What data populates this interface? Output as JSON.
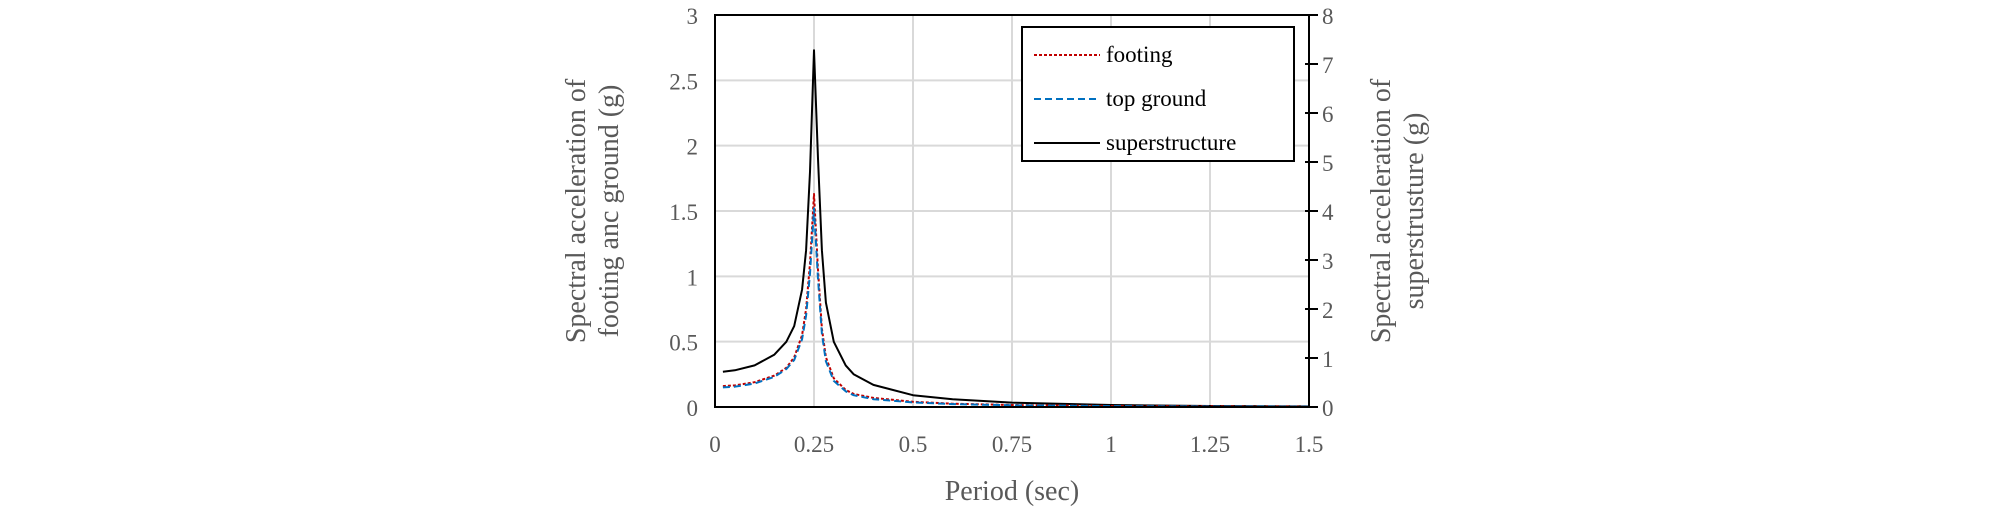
{
  "chart_data": {
    "type": "line",
    "xlabel": "Period (sec)",
    "ylabel_left": [
      "Spectral acceleration of",
      "footing anc ground (g)"
    ],
    "ylabel_right": [
      "Spectral acceleration of",
      "superstrusture (g)"
    ],
    "xlim": [
      0,
      1.5
    ],
    "ylim_left": [
      0,
      3
    ],
    "ylim_right": [
      0,
      8
    ],
    "x_ticks": [
      "0",
      "0.25",
      "0.5",
      "0.75",
      "1",
      "1.25",
      "1.5"
    ],
    "y_ticks_left": [
      "0",
      "0.5",
      "1",
      "1.5",
      "2",
      "2.5",
      "3"
    ],
    "y_ticks_right": [
      "0",
      "1",
      "2",
      "3",
      "4",
      "5",
      "6",
      "7",
      "8"
    ],
    "grid": true,
    "legend_position": "top-right",
    "x": [
      0.02,
      0.05,
      0.1,
      0.15,
      0.18,
      0.2,
      0.22,
      0.23,
      0.24,
      0.25,
      0.26,
      0.27,
      0.28,
      0.3,
      0.33,
      0.35,
      0.4,
      0.5,
      0.6,
      0.75,
      1,
      1.25,
      1.5
    ],
    "series": [
      {
        "name": "footing",
        "axis": "left",
        "color": "#c00000",
        "dash": "dotted",
        "values": [
          0.16,
          0.165,
          0.19,
          0.24,
          0.3,
          0.38,
          0.55,
          0.75,
          1.1,
          1.63,
          1.05,
          0.6,
          0.38,
          0.22,
          0.13,
          0.1,
          0.07,
          0.04,
          0.025,
          0.015,
          0.008,
          0.005,
          0.003
        ]
      },
      {
        "name": "top ground",
        "axis": "left",
        "color": "#0070c0",
        "dash": "dashed",
        "values": [
          0.15,
          0.155,
          0.18,
          0.23,
          0.29,
          0.36,
          0.52,
          0.7,
          1.02,
          1.52,
          0.98,
          0.56,
          0.35,
          0.2,
          0.12,
          0.09,
          0.06,
          0.035,
          0.022,
          0.013,
          0.007,
          0.004,
          0.003
        ]
      },
      {
        "name": "superstructure",
        "axis": "right",
        "color": "#000000",
        "dash": "solid",
        "values": [
          0.72,
          0.75,
          0.85,
          1.07,
          1.33,
          1.65,
          2.4,
          3.2,
          4.8,
          7.28,
          5.07,
          3.2,
          2.13,
          1.33,
          0.85,
          0.67,
          0.45,
          0.24,
          0.16,
          0.09,
          0.04,
          0.02,
          0.013
        ]
      }
    ]
  }
}
